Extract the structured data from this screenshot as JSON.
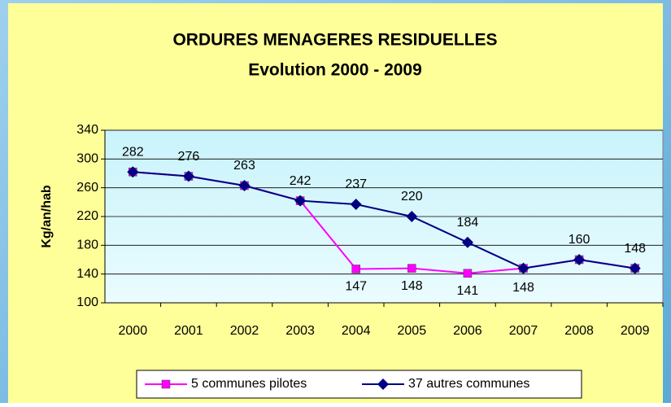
{
  "chart_data": {
    "type": "line",
    "title": "ORDURES MENAGERES RESIDUELLES",
    "subtitle": "Evolution 2000 - 2009",
    "y_label": "Kg/an/hab",
    "categories": [
      "2000",
      "2001",
      "2002",
      "2003",
      "2004",
      "2005",
      "2006",
      "2007",
      "2008",
      "2009"
    ],
    "series": [
      {
        "name": "5 communes pilotes",
        "color": "#ff00ff",
        "marker": "square",
        "values": [
          282,
          276,
          263,
          242,
          147,
          148,
          141,
          148,
          160,
          148
        ]
      },
      {
        "name": "37 autres communes",
        "color": "#000080",
        "marker": "diamond",
        "values": [
          282,
          276,
          263,
          242,
          237,
          220,
          184,
          148,
          160,
          148
        ]
      }
    ],
    "ylim": [
      100,
      340
    ],
    "yticks": [
      100,
      140,
      180,
      220,
      260,
      300,
      340
    ],
    "grid": true,
    "legend": "bottom"
  }
}
